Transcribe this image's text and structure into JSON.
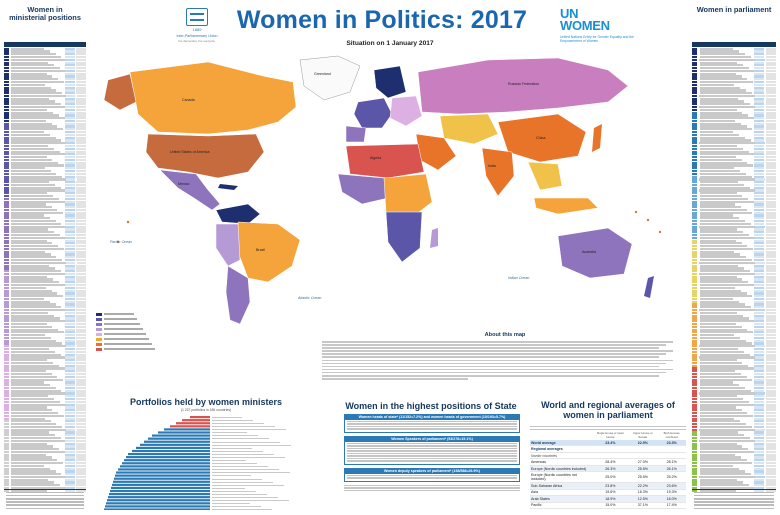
{
  "header": {
    "title": "Women in Politics: 2017",
    "situation": "Situation on 1 January 2017",
    "ipu_name": "Inter-Parliamentary Union",
    "ipu_year": "1889",
    "ipu_tagline": "For democracy. For everyone.",
    "unwomen_line1": "UN",
    "unwomen_line2": "WOMEN",
    "unwomen_full": "United Nations Entity for Gender Equality and the Empowerment of Women"
  },
  "left_column": {
    "title_line1": "Women in",
    "title_line2": "ministerial positions"
  },
  "right_column": {
    "title": "Women in parliament"
  },
  "map": {
    "ocean_labels": [
      "Pacific Ocean",
      "Atlantic Ocean",
      "Indian Ocean"
    ],
    "country_labels": [
      "Canada",
      "United States of America",
      "Brazil",
      "Russian Federation",
      "China",
      "India",
      "Australia",
      "Greenland",
      "Mexico",
      "Algeria"
    ]
  },
  "about": {
    "title": "About this map"
  },
  "portfolio": {
    "title": "Portfolios held by women ministers",
    "subtitle": "(1 237 portfolios in 186 countries)"
  },
  "state": {
    "title": "Women in the highest positions of State",
    "boxes": [
      "Women heads of state* (11/152=7.2%) and women heads of government (10/193=5.7%)",
      "Women Speakers of parliament* (53/278=19.1%)",
      "Women deputy speakers of parliament* (158/588=26.9%)"
    ]
  },
  "regional": {
    "title": "World and regional averages of women in parliament",
    "headers": [
      "",
      "Single House or lower House",
      "Upper House or Senate",
      "Both Houses combined"
    ],
    "world": {
      "label": "World average",
      "values": [
        "23.4%",
        "22.9%",
        "23.3%"
      ]
    },
    "section_label": "Regional averages",
    "sub_label": "Nordic countries",
    "rows": [
      {
        "label": "Americas",
        "values": [
          "28.4%",
          "27.0%",
          "28.1%"
        ]
      },
      {
        "label": "Europe (Nordic countries included)",
        "values": [
          "26.3%",
          "25.5%",
          "26.1%"
        ]
      },
      {
        "label": "Europe (Nordic countries not included)",
        "values": [
          "25.0%",
          "25.5%",
          "25.2%"
        ]
      },
      {
        "label": "Sub-Saharan Africa",
        "values": [
          "23.8%",
          "22.2%",
          "23.6%"
        ]
      },
      {
        "label": "Asia",
        "values": [
          "19.6%",
          "16.3%",
          "19.3%"
        ]
      },
      {
        "label": "Arab States",
        "values": [
          "18.9%",
          "12.5%",
          "18.0%"
        ]
      },
      {
        "label": "Pacific",
        "values": [
          "15.0%",
          "37.1%",
          "17.4%"
        ]
      }
    ]
  },
  "colors": {
    "brand_blue": "#1a67b0",
    "dark_navy": "#15385e",
    "unwomen_blue": "#1a8fd1",
    "ocean": "#ffffff",
    "legend": [
      "#1d2f6f",
      "#5c56a8",
      "#8e73bd",
      "#b59ad6",
      "#ddb0e3",
      "#f5a623",
      "#e8742a",
      "#d9534f"
    ]
  }
}
